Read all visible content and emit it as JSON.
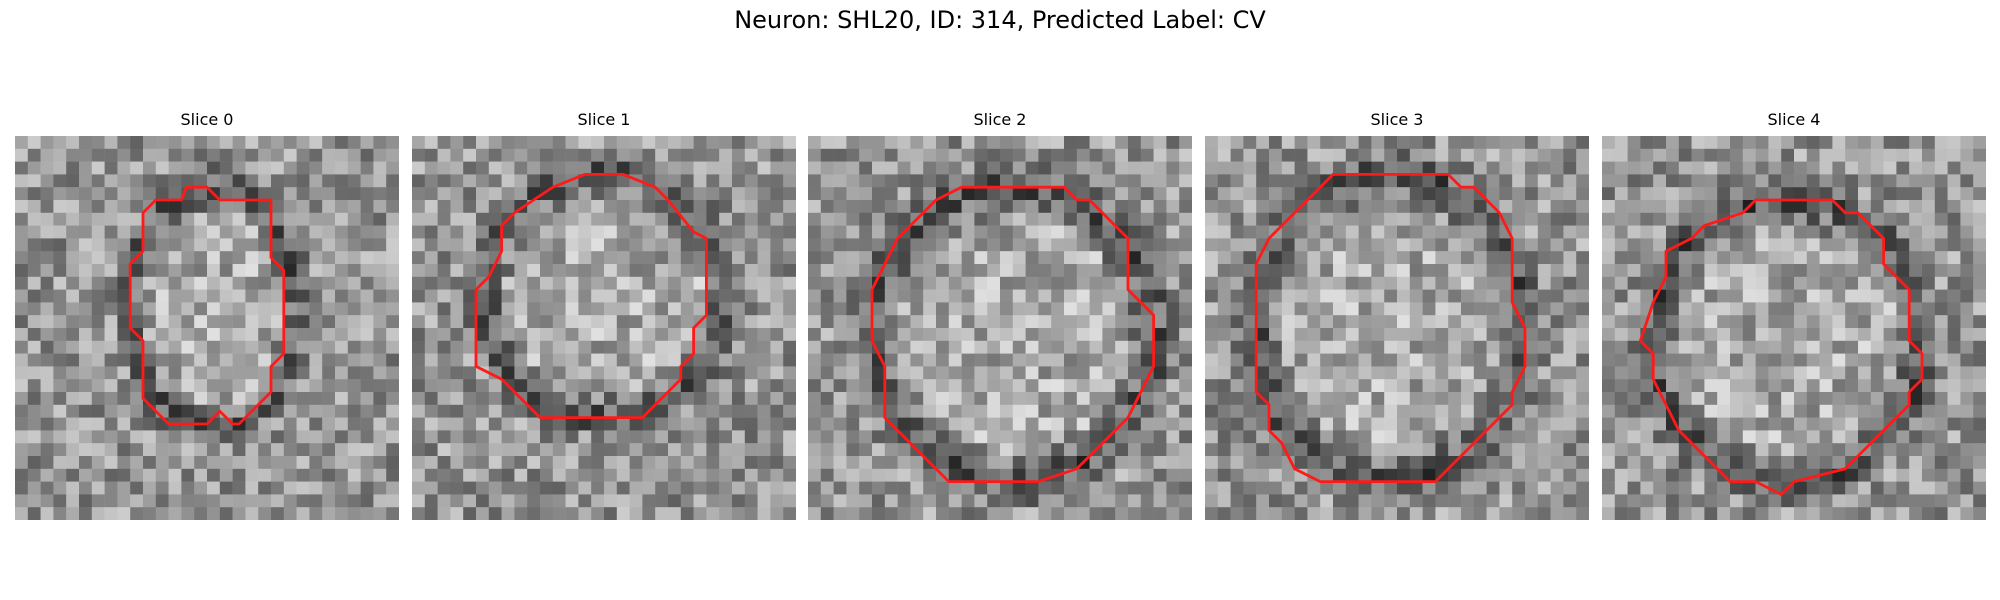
{
  "figure": {
    "title": "Neuron: SHL20, ID: 314, Predicted Label: CV"
  },
  "panels": [
    {
      "title": "Slice 0"
    },
    {
      "title": "Slice 1"
    },
    {
      "title": "Slice 2"
    },
    {
      "title": "Slice 3"
    },
    {
      "title": "Slice 4"
    }
  ],
  "colors": {
    "contour": "#ff1a1a",
    "background": "#ffffff"
  }
}
